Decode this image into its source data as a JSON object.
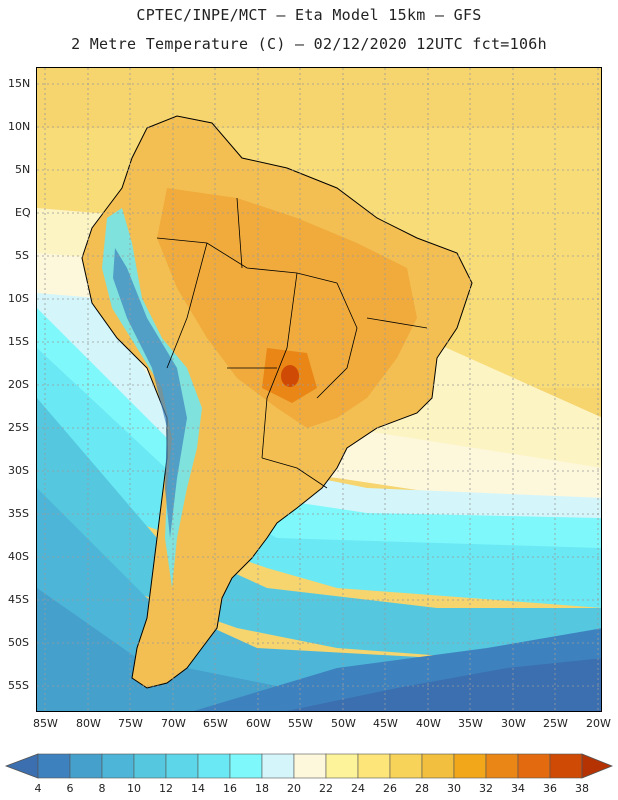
{
  "header": {
    "line1": "CPTEC/INPE/MCT –  Eta Model 15km – GFS",
    "line2": "2 Metre Temperature (C) – 02/12/2020 12UTC fct=106h"
  },
  "map": {
    "lat_labels": [
      "15N",
      "10N",
      "5N",
      "EQ",
      "5S",
      "10S",
      "15S",
      "20S",
      "25S",
      "30S",
      "35S",
      "40S",
      "45S",
      "50S",
      "55S"
    ],
    "lon_labels": [
      "85W",
      "80W",
      "75W",
      "70W",
      "65W",
      "60W",
      "55W",
      "50W",
      "45W",
      "40W",
      "35W",
      "30W",
      "25W",
      "20W"
    ]
  },
  "colorbar": {
    "labels": [
      "4",
      "6",
      "8",
      "10",
      "12",
      "14",
      "16",
      "18",
      "20",
      "22",
      "24",
      "26",
      "28",
      "30",
      "32",
      "34",
      "36",
      "38"
    ],
    "colors": [
      "#3b6fb0",
      "#3d82be",
      "#45a0cc",
      "#4db6d8",
      "#55c8e0",
      "#5ed6ea",
      "#6ae8f4",
      "#7ff8fb",
      "#d4f6fb",
      "#fdf7dc",
      "#fdf39a",
      "#fde57a",
      "#f8d35a",
      "#f2bf3e",
      "#f2a71a",
      "#e98616",
      "#e36a0e",
      "#cf4a05",
      "#b53303"
    ],
    "low_color": "#3b6fb0",
    "high_color": "#b53303"
  }
}
